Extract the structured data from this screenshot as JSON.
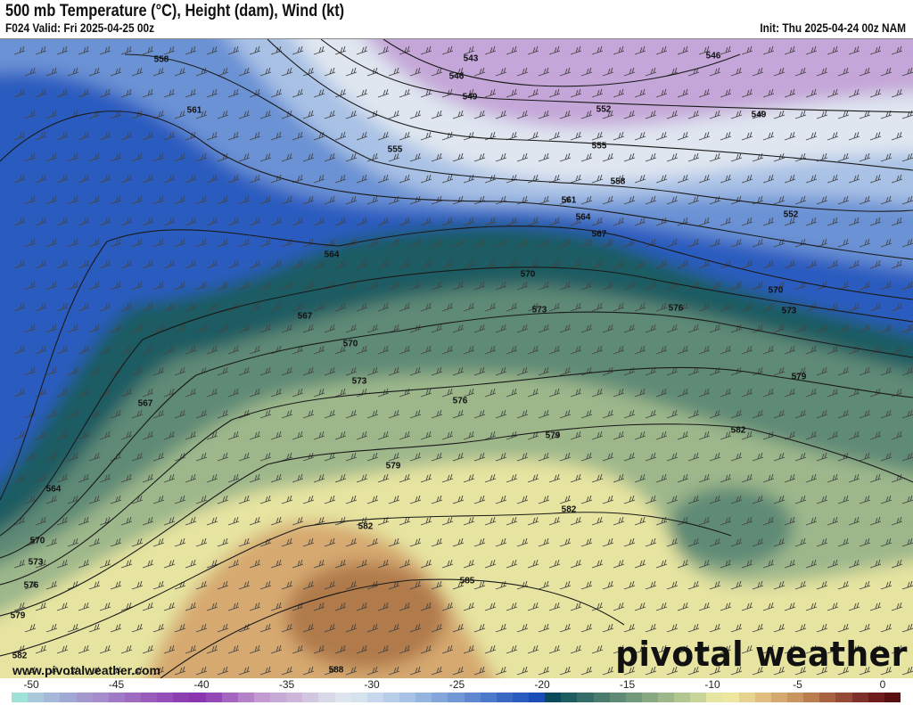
{
  "header": {
    "title": "500 mb Temperature (°C), Height (dam), Wind (kt)",
    "valid": "F024 Valid: Fri 2025-04-25 00z",
    "init": "Init: Thu 2025-04-24 00z NAM"
  },
  "map": {
    "contour_labels": [
      "543",
      "546",
      "549",
      "552",
      "555",
      "558",
      "561",
      "564",
      "567",
      "570",
      "573",
      "576",
      "579",
      "582",
      "579",
      "573",
      "570",
      "552",
      "549",
      "546",
      "558",
      "561",
      "555",
      "564",
      "567",
      "570",
      "573",
      "576",
      "579",
      "582",
      "585",
      "588",
      "567",
      "564",
      "570",
      "573",
      "576",
      "579",
      "582",
      "582"
    ],
    "fill_colors": {
      "cold": "#c4a6d8",
      "white": "#dfe6f0",
      "lightblue": "#a8c1e5",
      "blue": "#6a92d4",
      "deepblue": "#2a5cc0",
      "teal": "#1d5b62",
      "green": "#5e8a76",
      "lightgreen": "#9db78b",
      "yellow": "#e6e4a0",
      "tan": "#d6a970",
      "brown": "#b07a4c"
    }
  },
  "footer": {
    "url": "www.pivotalweather.com",
    "brand": "pivotal weather"
  },
  "colorbar": {
    "ticks": [
      "-50",
      "-45",
      "-40",
      "-35",
      "-30",
      "-25",
      "-20",
      "-15",
      "-10",
      "-5",
      "0"
    ],
    "colors": [
      "#9fe3d8",
      "#a9c9da",
      "#a6b8d8",
      "#a0a8d4",
      "#a498cf",
      "#a58ccb",
      "#a07ac4",
      "#9d6cc0",
      "#9a5cbc",
      "#944eb8",
      "#8d3fb2",
      "#8a35af",
      "#9448b5",
      "#a466bf",
      "#b482c8",
      "#c19bd1",
      "#c8aad6",
      "#cdb6da",
      "#d2c7e0",
      "#d8d8e8",
      "#dfe5ef",
      "#d6e2ee",
      "#c7d8ec",
      "#b8cde9",
      "#a8c1e5",
      "#96b4e0",
      "#84a6db",
      "#7298d6",
      "#5f88d0",
      "#4d79cb",
      "#3a69c5",
      "#2a5cbf",
      "#1a4db8",
      "#0b4a5a",
      "#1f5c60",
      "#356c68",
      "#4a7b6e",
      "#5e8a76",
      "#73997d",
      "#88a884",
      "#9db78b",
      "#b2c692",
      "#c9d69a",
      "#e6e6a2",
      "#efe6a0",
      "#e8d290",
      "#dfbe80",
      "#d6a970",
      "#c99560",
      "#ba7d50",
      "#a86242",
      "#954a35",
      "#80302a",
      "#6e1c1e",
      "#5a1010"
    ]
  }
}
